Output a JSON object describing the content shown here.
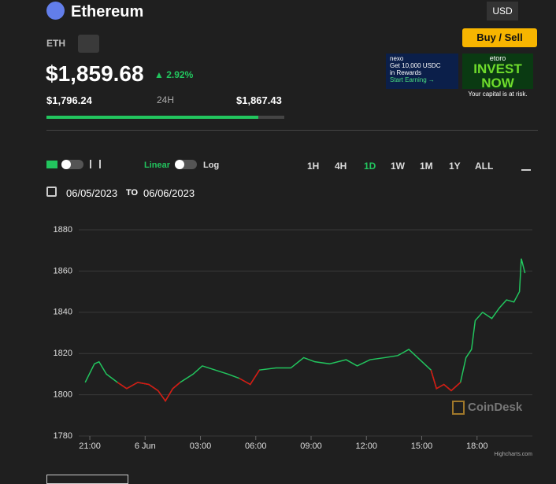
{
  "header": {
    "title": "Ethereum",
    "symbol": "ETH",
    "price": "$1,859.68",
    "change": "2.92%",
    "low": "$1,796.24",
    "range_label": "24H",
    "high": "$1,867.43",
    "currency": "USD",
    "buy_button": "Buy / Sell"
  },
  "ads": {
    "nexo_brand": "nexo",
    "nexo_line1": "Get 10,000 USDC",
    "nexo_line2": "in Rewards",
    "nexo_cta": "Start Earning →",
    "etoro_brand": "etoro",
    "etoro_headline": "INVEST NOW",
    "etoro_note": "Your capital is at risk."
  },
  "controls": {
    "scale_linear": "Linear",
    "scale_log": "Log",
    "ranges": [
      "1H",
      "4H",
      "1D",
      "1W",
      "1M",
      "1Y",
      "ALL"
    ],
    "active_range": 2,
    "date_from": "06/05/2023",
    "date_sep": "TO",
    "date_to": "06/06/2023"
  },
  "chart_data": {
    "type": "line",
    "watermark": "CoinDesk",
    "credit": "Highcharts.com",
    "x": [
      -0.25,
      0.25,
      0.5,
      0.9,
      1.5,
      2.0,
      2.6,
      3.2,
      3.7,
      4.1,
      4.5,
      4.9,
      5.6,
      6.1,
      6.8,
      7.5,
      8.1,
      8.7,
      9.2,
      10.1,
      10.9,
      11.6,
      12.2,
      13.0,
      13.9,
      14.5,
      15.2,
      16.0,
      16.7,
      17.3,
      17.9,
      18.5,
      18.8,
      19.2,
      19.6,
      20.1,
      20.4,
      20.7,
      20.9,
      21.3,
      21.8,
      22.2,
      22.6,
      23.0,
      23.3,
      23.4,
      23.6
    ],
    "series": [
      {
        "color": "#22c55e",
        "values": [
          1806,
          1815,
          1816,
          1810,
          1806,
          1803,
          1806,
          1805,
          1802,
          1797,
          1803,
          1806,
          1810,
          1814,
          1812,
          1810,
          1808,
          1805,
          1812,
          1813,
          1813,
          1818,
          1816,
          1815,
          1817,
          1814,
          1817,
          1818,
          1819,
          1822,
          1817,
          1812,
          1803,
          1805,
          1802,
          1806,
          1818,
          1822,
          1836,
          1840,
          1837,
          1842,
          1846,
          1845,
          1850,
          1866,
          1859
        ]
      },
      {
        "color": "#e01010",
        "values": [
          null,
          null,
          null,
          null,
          1806,
          1803,
          1806,
          1805,
          1802,
          1797,
          1803,
          1806,
          null,
          null,
          null,
          null,
          1808,
          1805,
          1812,
          null,
          null,
          null,
          null,
          null,
          null,
          null,
          null,
          null,
          null,
          null,
          null,
          1812,
          1803,
          1805,
          1802,
          1806,
          null,
          null,
          null,
          null,
          null,
          null,
          null,
          null,
          null,
          null,
          null
        ]
      }
    ],
    "xlim": [
      -0.6,
      24
    ],
    "ylim": [
      1780,
      1880
    ],
    "xticks": [
      {
        "value": 0,
        "label": "21:00"
      },
      {
        "value": 3,
        "label": "6 Jun"
      },
      {
        "value": 6,
        "label": "03:00"
      },
      {
        "value": 9,
        "label": "06:00"
      },
      {
        "value": 12,
        "label": "09:00"
      },
      {
        "value": 15,
        "label": "12:00"
      },
      {
        "value": 18,
        "label": "15:00"
      },
      {
        "value": 21,
        "label": "18:00"
      }
    ],
    "yticks": [
      1780,
      1800,
      1820,
      1840,
      1860,
      1880
    ],
    "grid": true
  }
}
